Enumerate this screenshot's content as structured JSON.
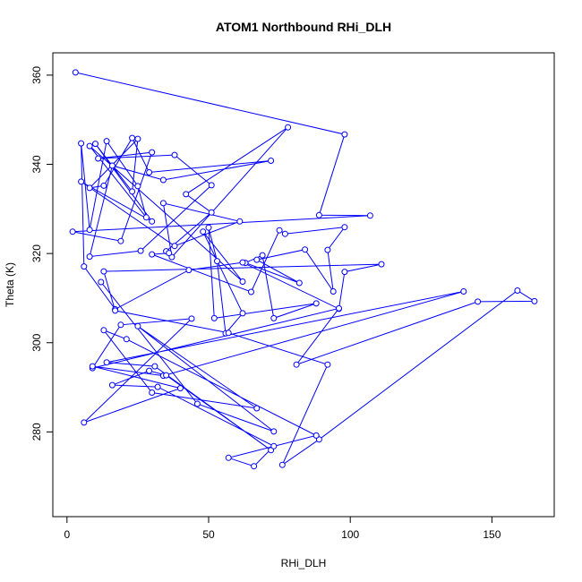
{
  "chart_data": {
    "type": "line",
    "title": "ATOM1 Northbound RHi_DLH",
    "xlabel": "RHi_DLH",
    "ylabel": "Theta (K)",
    "xlim": [
      -5,
      172
    ],
    "ylim": [
      261,
      365
    ],
    "x_ticks": [
      0,
      50,
      100,
      150
    ],
    "y_ticks": [
      280,
      300,
      320,
      340,
      360
    ],
    "grid": false,
    "legend": "none",
    "markers": "open-circle",
    "color": "#0000ff",
    "series": [
      {
        "x": [
          3,
          98,
          89,
          107,
          2,
          19,
          30,
          11,
          38,
          51,
          26,
          8,
          16,
          34,
          72,
          29,
          23,
          13,
          8,
          25,
          23,
          10,
          30,
          5,
          38,
          61,
          34,
          37,
          78,
          42,
          51,
          35,
          36,
          30,
          65,
          75,
          77,
          98,
          92,
          94,
          84,
          67,
          82,
          63,
          69,
          73,
          88,
          52,
          50,
          53,
          56,
          62,
          48,
          62,
          8,
          28,
          25,
          14,
          8,
          5,
          6,
          17,
          43,
          62,
          96,
          98,
          111,
          13,
          17,
          57,
          92,
          76,
          89,
          159,
          165,
          145,
          81,
          96,
          9,
          19,
          44,
          6,
          40,
          9,
          34,
          140,
          14,
          31,
          72,
          35,
          29,
          16,
          32,
          73,
          66,
          57,
          88,
          21,
          13,
          30,
          67,
          25,
          73,
          46,
          12
        ],
        "y": [
          360.6,
          346.7,
          328.6,
          328.5,
          324.9,
          322.8,
          342.7,
          341.3,
          342.1,
          335.3,
          320.6,
          319.3,
          339.7,
          336.5,
          340.8,
          338.2,
          345.9,
          335.2,
          334.7,
          345.7,
          333.9,
          344.6,
          327.2,
          336.1,
          321.7,
          327.2,
          331.3,
          319.2,
          348.3,
          333.3,
          329.2,
          320.5,
          320.1,
          319.8,
          311.4,
          325.2,
          324.4,
          325.9,
          320.8,
          311.5,
          320.9,
          318.6,
          313.4,
          317.9,
          319.6,
          305.5,
          308.8,
          305.5,
          325.8,
          318.3,
          302.1,
          306.6,
          324.9,
          313.7,
          344.1,
          328.1,
          335.1,
          345.2,
          325.3,
          344.7,
          317.1,
          307.5,
          316.3,
          318.0,
          307.6,
          315.9,
          317.6,
          316.0,
          307.2,
          302.2,
          295.1,
          272.6,
          278.3,
          311.7,
          309.3,
          309.2,
          295.1,
          307.7,
          294.3,
          304.0,
          305.4,
          282.1,
          289.8,
          294.7,
          292.6,
          311.5,
          295.6,
          294.7,
          275.9,
          292.7,
          293.7,
          290.5,
          290.1,
          276.8,
          272.3,
          274.2,
          279.2,
          300.8,
          302.8,
          288.8,
          285.3,
          303.7,
          280.1,
          286.3,
          313.6
        ]
      }
    ]
  }
}
